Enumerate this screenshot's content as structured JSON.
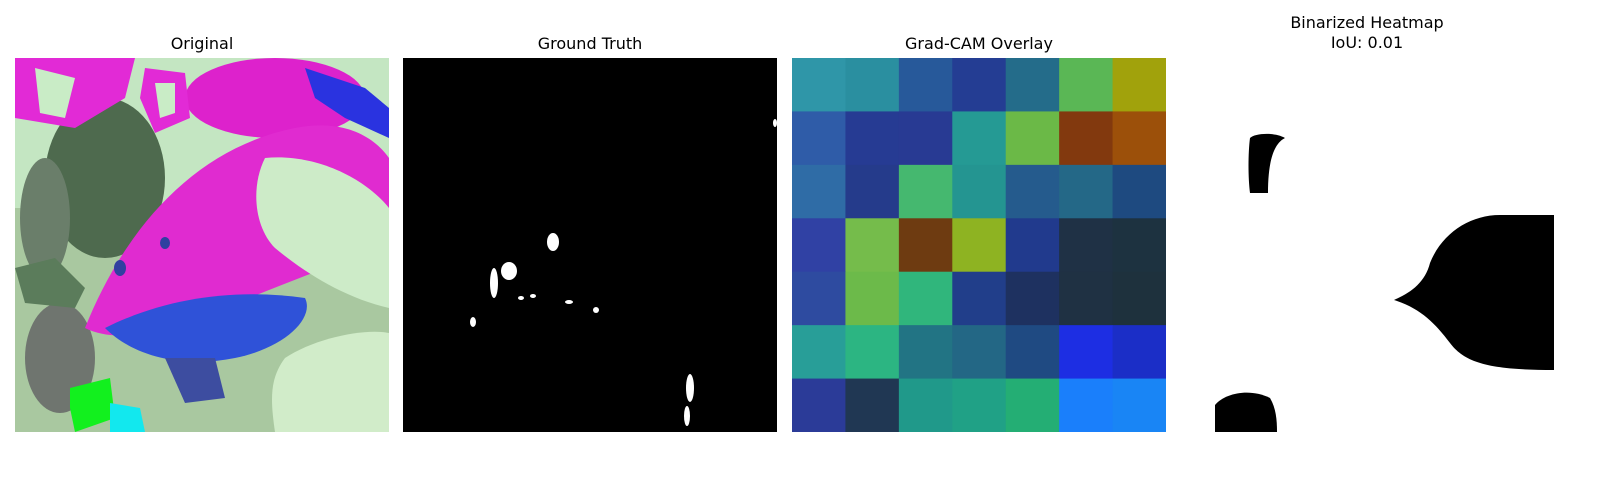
{
  "panels": [
    {
      "title": "Original"
    },
    {
      "title": "Ground Truth"
    },
    {
      "title": "Grad-CAM Overlay"
    },
    {
      "title_line1": "Binarized Heatmap",
      "title_line2": "IoU: 0.01"
    }
  ],
  "gradcam_grid": [
    [
      "#2f96a8",
      "#2a8fa0",
      "#27599a",
      "#243d93",
      "#246c8a",
      "#5ab755",
      "#a1a20c"
    ],
    [
      "#2f5ca8",
      "#263b93",
      "#283a93",
      "#259a94",
      "#6bb947",
      "#82390e",
      "#9c500a"
    ],
    [
      "#2f6ca6",
      "#253b8b",
      "#45b86f",
      "#249591",
      "#255b8d",
      "#246887",
      "#1e4a80"
    ],
    [
      "#3041a4",
      "#75bc4b",
      "#6e3b11",
      "#8eb322",
      "#213a8d",
      "#1f3145",
      "#1d3240"
    ],
    [
      "#2e4ba0",
      "#6cba4a",
      "#30b67c",
      "#213e8a",
      "#1e3160",
      "#1f3143",
      "#1e313d"
    ],
    [
      "#289e98",
      "#2cb582",
      "#227484",
      "#236785",
      "#1f4a82",
      "#1d2ee3",
      "#1b2ec7"
    ],
    [
      "#2b3b98",
      "#203753",
      "#20998a",
      "#20a186",
      "#24ae74",
      "#1a7ffb",
      "#1985f5"
    ]
  ]
}
